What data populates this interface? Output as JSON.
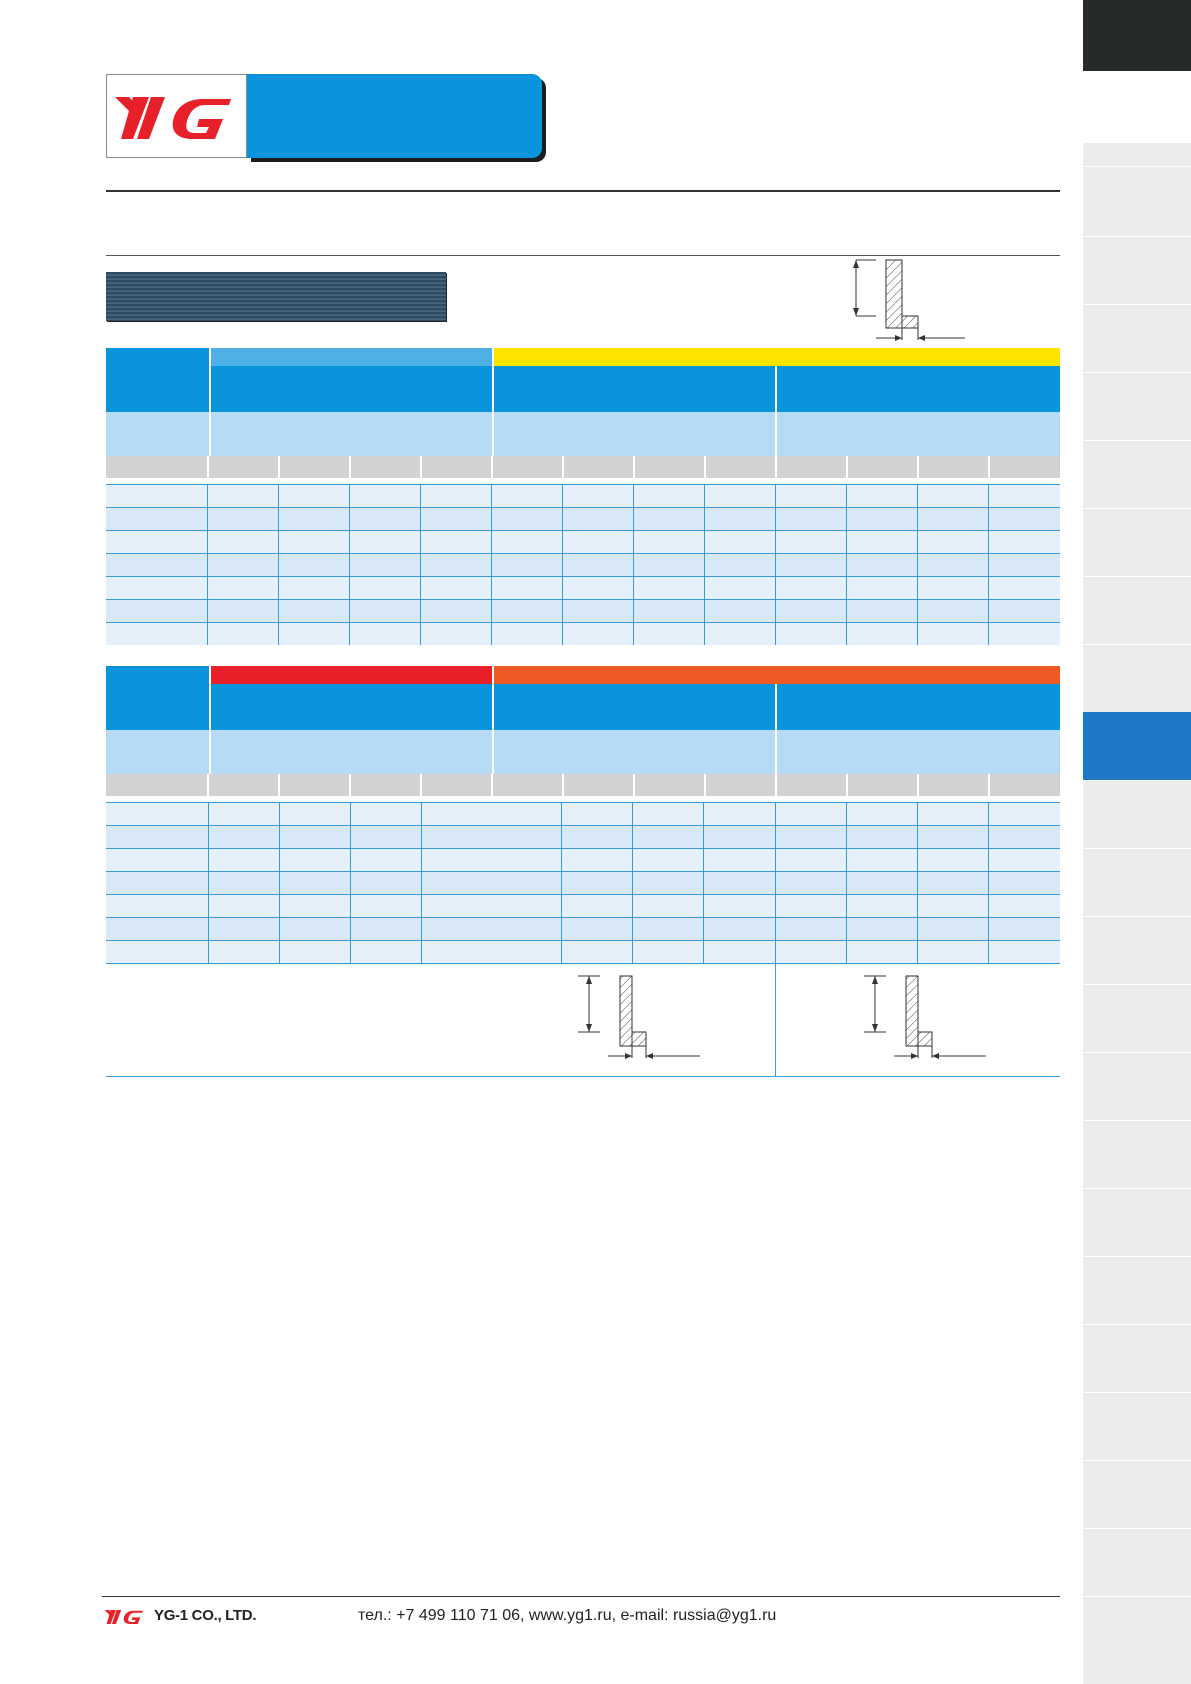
{
  "header": {
    "logo_text": "YG",
    "colors": {
      "brand_blue": "#0a94dc",
      "logo_red": "#e8202a",
      "dark": "#252a2b"
    }
  },
  "tables": {
    "table1": {
      "top_bar_colors": [
        "#4fb0e6",
        "#ffe400"
      ],
      "group_colors": [
        "#0a94dc",
        "#0a94dc",
        "#0a94dc"
      ]
    },
    "table2": {
      "top_bar_colors": [
        "#e8202a",
        "#ee5a24"
      ],
      "group_colors": [
        "#0a94dc",
        "#0a94dc",
        "#0a94dc"
      ]
    }
  },
  "footer": {
    "logo_text": "YG",
    "company": "YG-1 CO., LTD.",
    "contact": "тел.: +7 499 110 71 06, www.yg1.ru, e-mail: russia@yg1.ru"
  },
  "icons": [
    "yg-logo-icon",
    "shoulder-diagram-icon",
    "dimension-arrow-icon"
  ]
}
